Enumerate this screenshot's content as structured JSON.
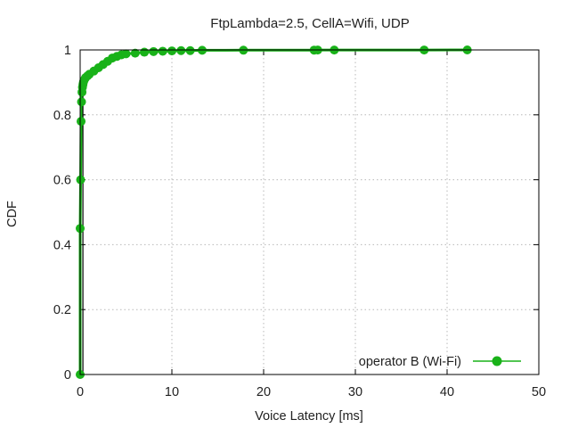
{
  "chart_data": {
    "type": "line",
    "title": "FtpLambda=2.5, CellA=Wifi, UDP",
    "xlabel": "Voice Latency [ms]",
    "ylabel": "CDF",
    "xlim": [
      0,
      50
    ],
    "ylim": [
      0,
      1
    ],
    "xticks": [
      "0",
      "10",
      "20",
      "30",
      "40",
      "50"
    ],
    "yticks": [
      "0",
      "0.2",
      "0.4",
      "0.6",
      "0.8",
      "1"
    ],
    "grid": true,
    "legend_position": "bottom-right",
    "series": [
      {
        "name": "operator B (Wi-Fi)",
        "color": "#19b219",
        "marker": "circle",
        "x": [
          0,
          0,
          0.05,
          0.1,
          0.15,
          0.2,
          0.25,
          0.3,
          0.35,
          0.4,
          0.5,
          0.6,
          0.8,
          1.0,
          1.5,
          2.0,
          2.5,
          3.0,
          3.5,
          4.0,
          4.5,
          5.0,
          6.0,
          7.0,
          8.0,
          9.0,
          10.0,
          11.0,
          12.0,
          13.3,
          17.8,
          25.5,
          25.9,
          27.7,
          37.5,
          42.2
        ],
        "y": [
          0,
          0.45,
          0.6,
          0.78,
          0.84,
          0.87,
          0.885,
          0.893,
          0.9,
          0.905,
          0.91,
          0.915,
          0.92,
          0.925,
          0.935,
          0.945,
          0.955,
          0.965,
          0.975,
          0.98,
          0.985,
          0.988,
          0.99,
          0.993,
          0.995,
          0.996,
          0.997,
          0.998,
          0.998,
          0.999,
          0.9992,
          0.9994,
          0.9996,
          0.9997,
          0.9998,
          1.0
        ]
      }
    ]
  }
}
